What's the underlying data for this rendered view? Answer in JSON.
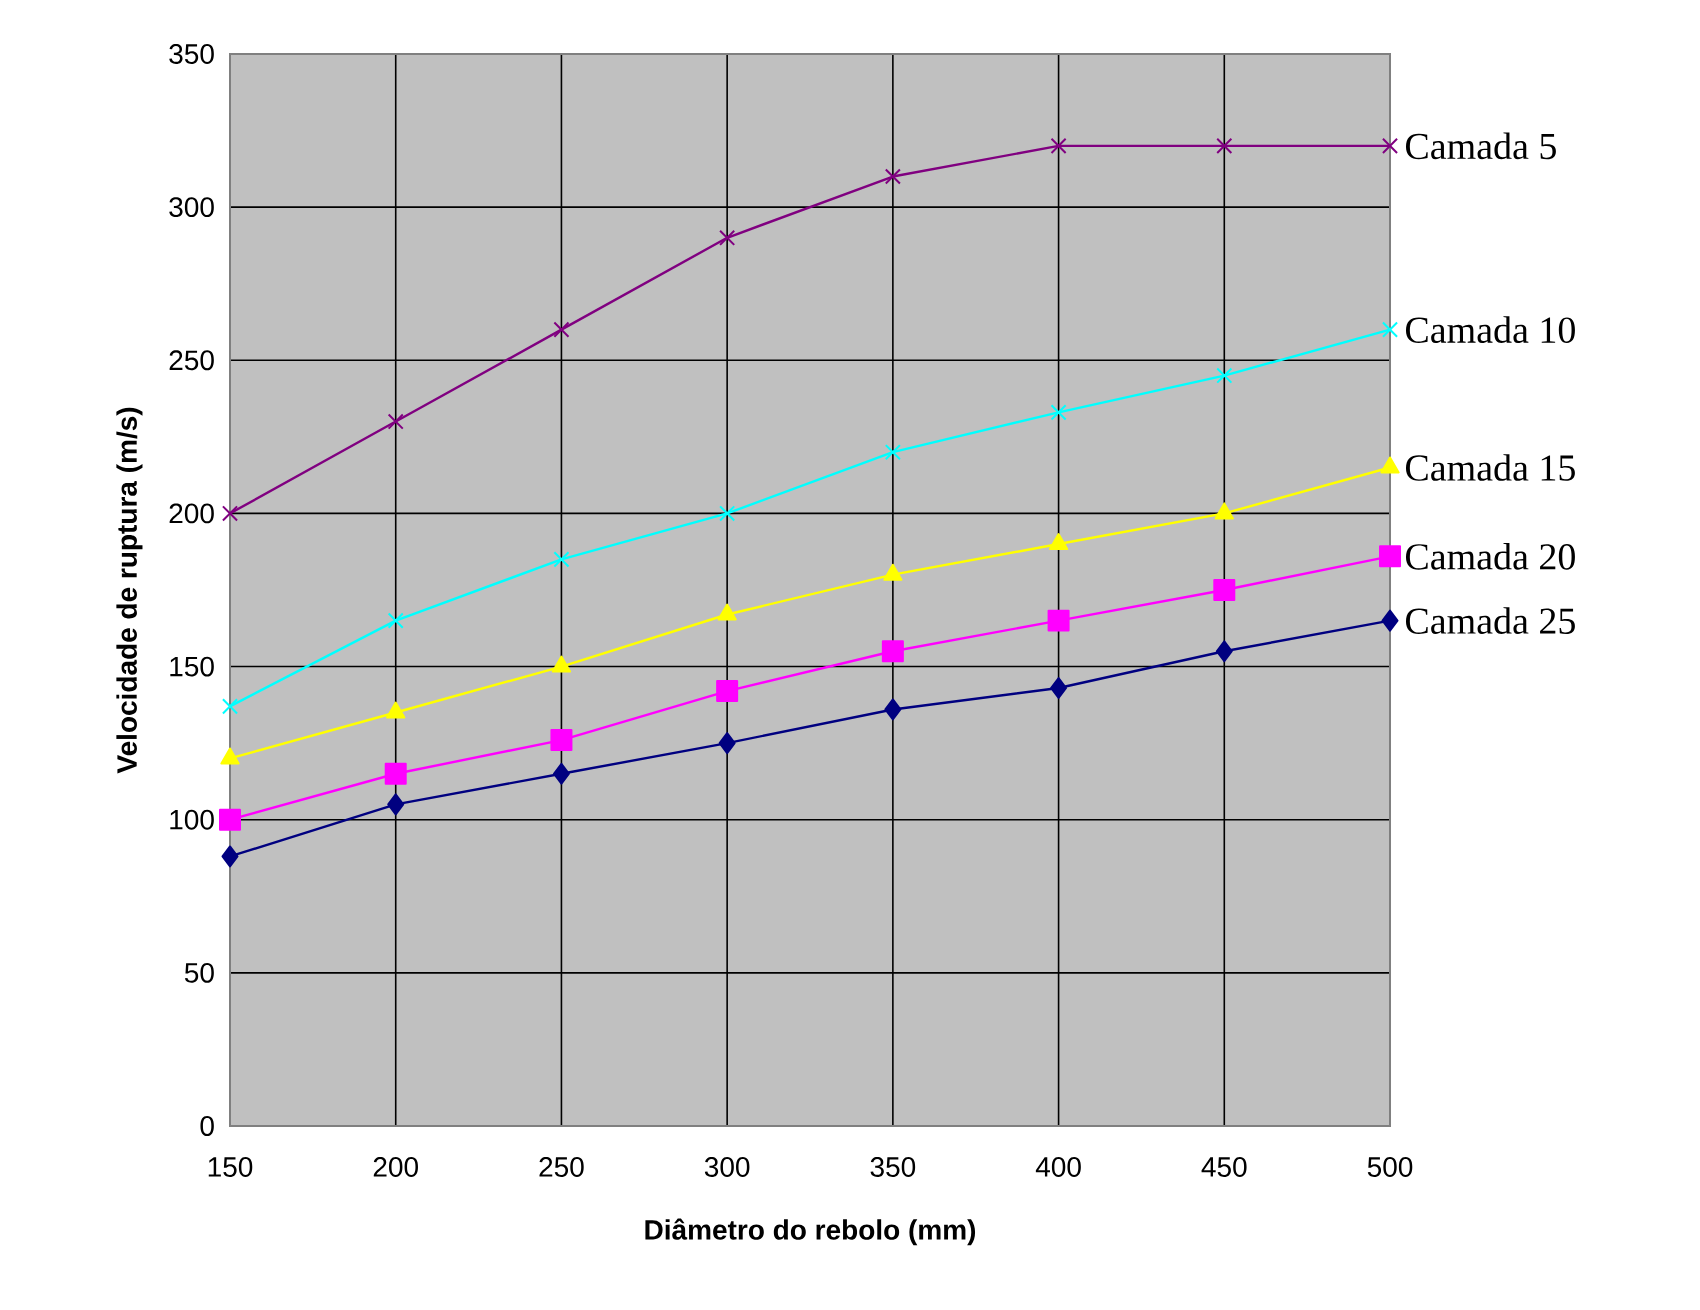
{
  "chart_data": {
    "type": "line",
    "xlabel": "Diâmetro do rebolo (mm)",
    "ylabel": "Velocidade de ruptura (m/s)",
    "x": [
      150,
      200,
      250,
      300,
      350,
      400,
      450,
      500
    ],
    "xlim": [
      150,
      500
    ],
    "xticks": [
      150,
      200,
      250,
      300,
      350,
      400,
      450,
      500
    ],
    "ylim": [
      0,
      350
    ],
    "yticks": [
      0,
      50,
      100,
      150,
      200,
      250,
      300,
      350
    ],
    "grid": true,
    "legend": false,
    "line_style": "solid",
    "series": [
      {
        "name": "Camada 5",
        "color": "#800080",
        "marker": "cross",
        "values": [
          200,
          230,
          260,
          290,
          310,
          320,
          320,
          320
        ]
      },
      {
        "name": "Camada 10",
        "color": "#00ffff",
        "marker": "cross",
        "values": [
          137,
          165,
          185,
          200,
          220,
          233,
          245,
          260
        ]
      },
      {
        "name": "Camada 15",
        "color": "#ffff00",
        "marker": "triangle",
        "values": [
          120,
          135,
          150,
          167,
          180,
          190,
          200,
          215
        ]
      },
      {
        "name": "Camada 20",
        "color": "#ff00ff",
        "marker": "square",
        "values": [
          100,
          115,
          126,
          142,
          155,
          165,
          175,
          186
        ]
      },
      {
        "name": "Camada 25",
        "color": "#000080",
        "marker": "diamond",
        "values": [
          88,
          105,
          115,
          125,
          136,
          143,
          155,
          165
        ]
      }
    ]
  }
}
